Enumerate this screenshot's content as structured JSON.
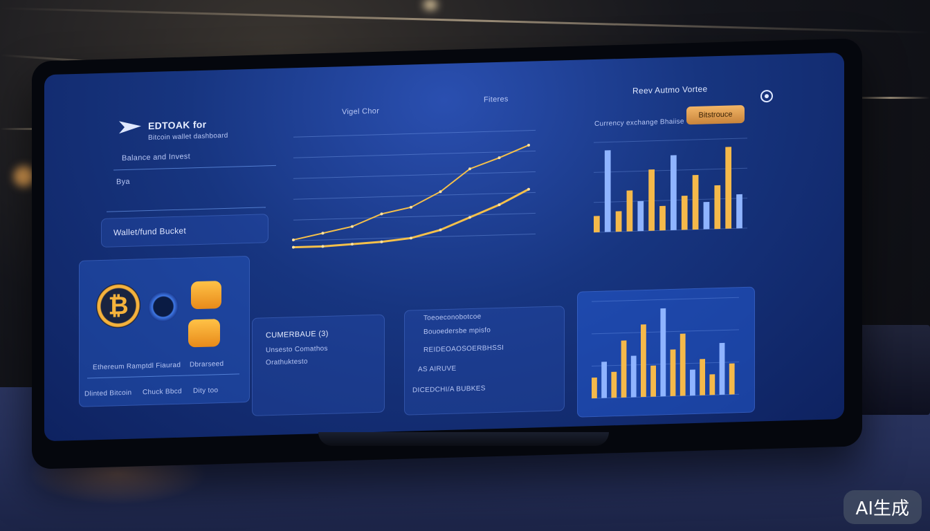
{
  "app": {
    "logo_text": "EDTOAK  for",
    "subtitle": "Bitcoin wallet dashboard"
  },
  "sidebar": {
    "label_1": "Balance and Invest",
    "field_1": "Bya",
    "field_2": "Wallet/fund Bucket"
  },
  "header": {
    "chart_tab": "Vigel Chor",
    "chart_tab_2": "Fiteres",
    "right_title": "Reev Autmo Vortee",
    "right_sub": "Currency exchange Bhaiise",
    "action_button": "Bitstrouce"
  },
  "wallet": {
    "coin_symbol": "₿",
    "info_line": "Ethereum Ramptdl Fiaurad",
    "info_right": "Dbrarseed",
    "btn_1": "Dlinted Bitcoin",
    "btn_2": "Chuck Bbcd",
    "btn_3": "Dity too"
  },
  "lower": {
    "panel_1_title": "CUMERBAUE (3)",
    "panel_1_line_1": "Unsesto Comathos",
    "panel_1_line_2": "Orathuktesto",
    "panel_2_line_1": "Toeoeconobotcoe",
    "panel_2_line_2": "Bouoedersbe mpisfo",
    "panel_2_line_3": "REIDEOAOSOERBHSSI",
    "panel_2_line_4": "AS AIRUVE",
    "panel_2_line_5": "DICEDCHI/A BUBKES"
  },
  "colors": {
    "accent": "#f2b566",
    "line": "#f5c04a",
    "screen": "#173580"
  },
  "badge": "AI生成",
  "chart_data": [
    {
      "type": "line",
      "series": [
        {
          "values": [
            10,
            14,
            18,
            26,
            30,
            40,
            55,
            62,
            70
          ]
        },
        {
          "values": [
            5,
            5,
            6,
            7,
            9,
            14,
            22,
            30,
            40
          ]
        }
      ]
    },
    {
      "type": "bar",
      "values": [
        12,
        60,
        15,
        30,
        22,
        45,
        18,
        55,
        25,
        40,
        20,
        32,
        60,
        25
      ]
    },
    {
      "type": "bar",
      "values": [
        20,
        35,
        25,
        55,
        40,
        70,
        30,
        85,
        45,
        60,
        25,
        35,
        20,
        50,
        30
      ]
    }
  ]
}
